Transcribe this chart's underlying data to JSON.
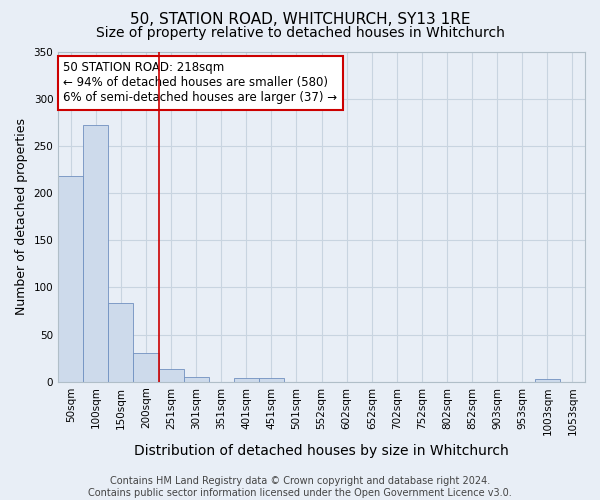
{
  "title": "50, STATION ROAD, WHITCHURCH, SY13 1RE",
  "subtitle": "Size of property relative to detached houses in Whitchurch",
  "xlabel": "Distribution of detached houses by size in Whitchurch",
  "ylabel": "Number of detached properties",
  "bar_labels": [
    "50sqm",
    "100sqm",
    "150sqm",
    "200sqm",
    "251sqm",
    "301sqm",
    "351sqm",
    "401sqm",
    "451sqm",
    "501sqm",
    "552sqm",
    "602sqm",
    "652sqm",
    "702sqm",
    "752sqm",
    "802sqm",
    "852sqm",
    "903sqm",
    "953sqm",
    "1003sqm",
    "1053sqm"
  ],
  "bar_values": [
    218,
    272,
    83,
    30,
    13,
    5,
    0,
    4,
    4,
    0,
    0,
    0,
    0,
    0,
    0,
    0,
    0,
    0,
    0,
    3,
    0
  ],
  "bar_color": "#cddaeb",
  "bar_edge_color": "#7090c0",
  "grid_color": "#c8d4e0",
  "background_color": "#e8eef6",
  "plot_bg_color": "#e8eef6",
  "vline_color": "#cc0000",
  "vline_x_index": 3.5,
  "annotation_text": "50 STATION ROAD: 218sqm\n← 94% of detached houses are smaller (580)\n6% of semi-detached houses are larger (37) →",
  "annotation_box_color": "#ffffff",
  "annotation_box_edge": "#cc0000",
  "footer_text": "Contains HM Land Registry data © Crown copyright and database right 2024.\nContains public sector information licensed under the Open Government Licence v3.0.",
  "ylim": [
    0,
    350
  ],
  "yticks": [
    0,
    50,
    100,
    150,
    200,
    250,
    300,
    350
  ],
  "title_fontsize": 11,
  "subtitle_fontsize": 10,
  "xlabel_fontsize": 10,
  "ylabel_fontsize": 9,
  "tick_fontsize": 7.5,
  "annotation_fontsize": 8.5,
  "footer_fontsize": 7
}
